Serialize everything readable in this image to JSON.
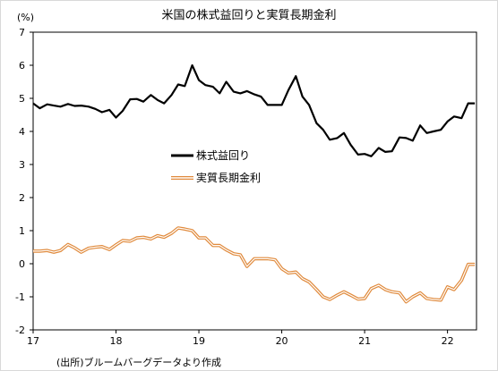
{
  "chart_data": {
    "type": "line",
    "title": "米国の株式益回りと実質長期金利",
    "unit_label": "(%)",
    "source_note": "(出所)ブルームバーグデータより作成",
    "ylim": [
      -2,
      7
    ],
    "yticks": [
      "-2",
      "-1",
      "0",
      "1",
      "2",
      "3",
      "4",
      "5",
      "6",
      "7"
    ],
    "xlim": [
      17,
      22.35
    ],
    "xticks": [
      "17",
      "18",
      "19",
      "20",
      "21",
      "22"
    ],
    "grid": false,
    "legend_position": "center",
    "series": [
      {
        "name": "株式益回り",
        "color": "#000000",
        "x": [
          17.0,
          17.08,
          17.17,
          17.25,
          17.33,
          17.42,
          17.5,
          17.58,
          17.67,
          17.75,
          17.83,
          17.92,
          18.0,
          18.08,
          18.17,
          18.25,
          18.33,
          18.42,
          18.5,
          18.58,
          18.67,
          18.75,
          18.83,
          18.92,
          19.0,
          19.08,
          19.17,
          19.25,
          19.33,
          19.42,
          19.5,
          19.58,
          19.67,
          19.75,
          19.83,
          19.92,
          20.0,
          20.08,
          20.17,
          20.25,
          20.33,
          20.42,
          20.5,
          20.58,
          20.67,
          20.75,
          20.83,
          20.92,
          21.0,
          21.08,
          21.17,
          21.25,
          21.33,
          21.42,
          21.5,
          21.58,
          21.67,
          21.75,
          21.83,
          21.92,
          22.0,
          22.08,
          22.17,
          22.25,
          22.33
        ],
        "values": [
          4.85,
          4.7,
          4.82,
          4.78,
          4.75,
          4.83,
          4.77,
          4.78,
          4.75,
          4.68,
          4.58,
          4.65,
          4.42,
          4.62,
          4.97,
          4.98,
          4.9,
          5.1,
          4.95,
          4.85,
          5.1,
          5.42,
          5.37,
          6.0,
          5.55,
          5.4,
          5.35,
          5.15,
          5.5,
          5.2,
          5.15,
          5.22,
          5.12,
          5.05,
          4.8,
          4.8,
          4.8,
          5.25,
          5.67,
          5.05,
          4.8,
          4.25,
          4.05,
          3.75,
          3.8,
          3.95,
          3.6,
          3.3,
          3.32,
          3.25,
          3.5,
          3.38,
          3.4,
          3.82,
          3.8,
          3.72,
          4.18,
          3.95,
          4.0,
          4.05,
          4.3,
          4.45,
          4.4,
          4.85,
          4.85
        ]
      },
      {
        "name": "実質長期金利",
        "color": "#f4a460",
        "x": [
          17.0,
          17.08,
          17.17,
          17.25,
          17.33,
          17.42,
          17.5,
          17.58,
          17.67,
          17.75,
          17.83,
          17.92,
          18.0,
          18.08,
          18.17,
          18.25,
          18.33,
          18.42,
          18.5,
          18.58,
          18.67,
          18.75,
          18.83,
          18.92,
          19.0,
          19.08,
          19.17,
          19.25,
          19.33,
          19.42,
          19.5,
          19.58,
          19.67,
          19.75,
          19.83,
          19.92,
          20.0,
          20.08,
          20.17,
          20.25,
          20.33,
          20.42,
          20.5,
          20.58,
          20.67,
          20.75,
          20.83,
          20.92,
          21.0,
          21.08,
          21.17,
          21.25,
          21.33,
          21.42,
          21.5,
          21.58,
          21.67,
          21.75,
          21.83,
          21.92,
          22.0,
          22.08,
          22.17,
          22.25,
          22.33
        ],
        "values": [
          0.38,
          0.38,
          0.4,
          0.35,
          0.4,
          0.58,
          0.48,
          0.35,
          0.47,
          0.5,
          0.52,
          0.43,
          0.57,
          0.7,
          0.68,
          0.78,
          0.8,
          0.75,
          0.85,
          0.8,
          0.92,
          1.08,
          1.05,
          1.0,
          0.78,
          0.78,
          0.55,
          0.55,
          0.42,
          0.3,
          0.27,
          -0.08,
          0.15,
          0.15,
          0.15,
          0.12,
          -0.15,
          -0.28,
          -0.25,
          -0.45,
          -0.55,
          -0.78,
          -1.0,
          -1.08,
          -0.95,
          -0.85,
          -0.95,
          -1.07,
          -1.05,
          -0.75,
          -0.65,
          -0.78,
          -0.85,
          -0.88,
          -1.15,
          -1.0,
          -0.88,
          -1.05,
          -1.08,
          -1.1,
          -0.7,
          -0.78,
          -0.5,
          -0.02,
          -0.02
        ]
      }
    ]
  }
}
